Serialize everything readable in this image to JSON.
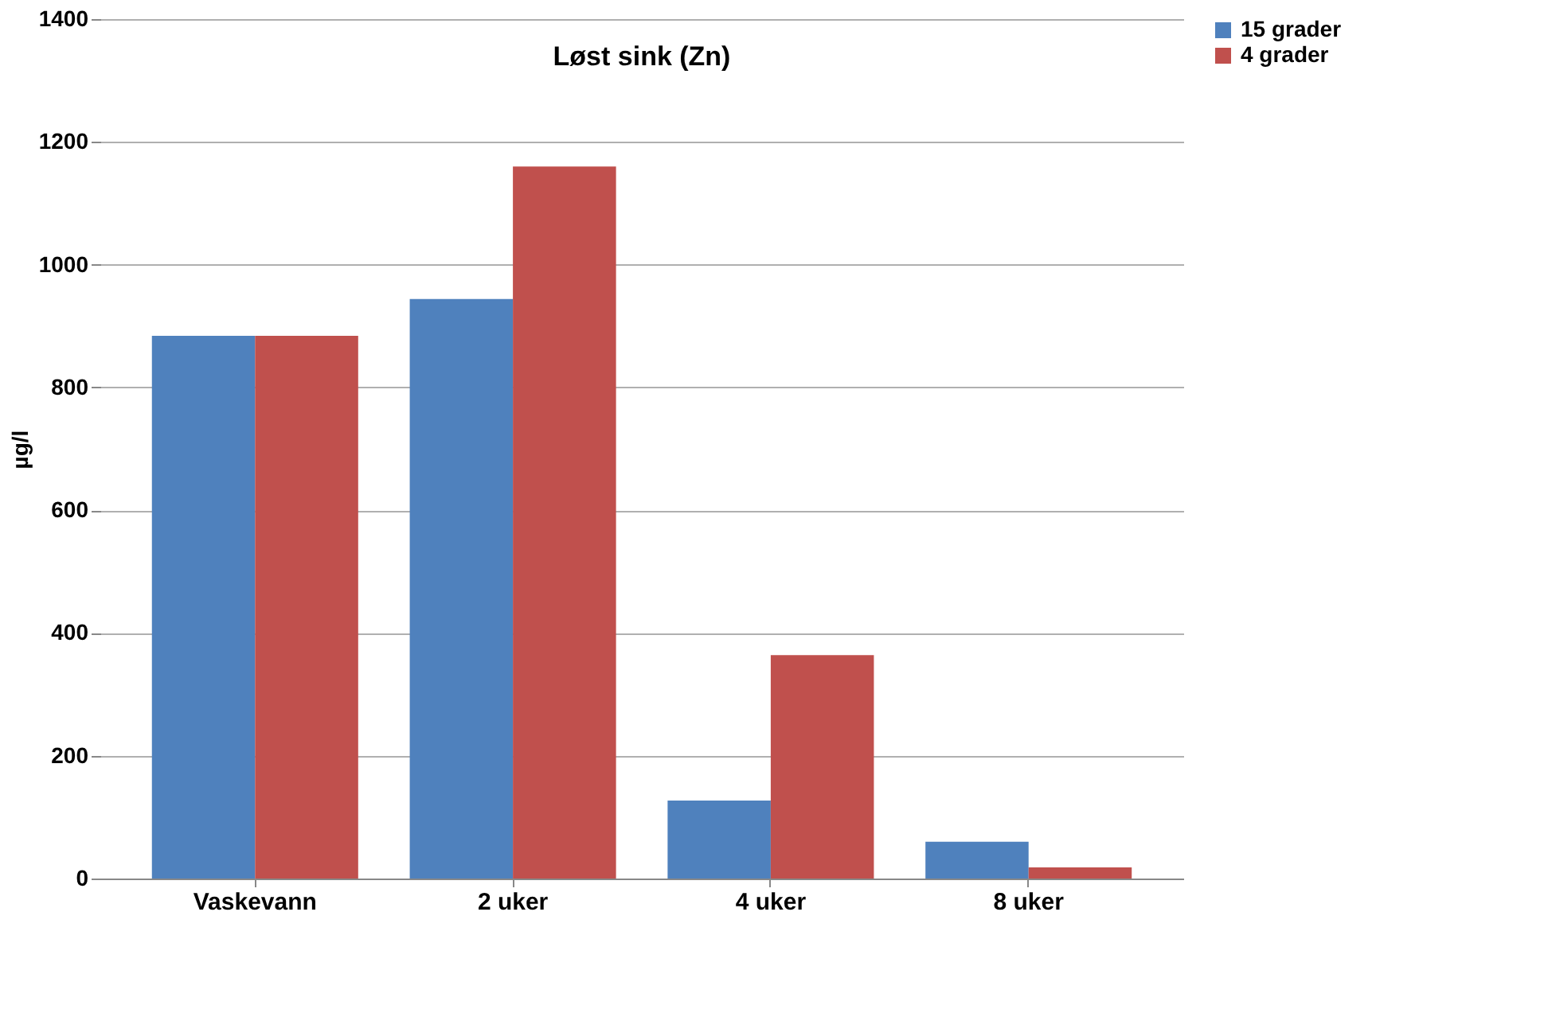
{
  "chart_data": {
    "type": "bar",
    "title": "Løst sink (Zn)",
    "ylabel": "µg/l",
    "categories": [
      "Vaskevann",
      "2 uker",
      "4 uker",
      "8 uker"
    ],
    "series": [
      {
        "name": "15 grader",
        "color": "#4f81bd",
        "values": [
          884,
          944,
          127,
          60
        ]
      },
      {
        "name": "4 grader",
        "color": "#c0504d",
        "values": [
          884,
          1160,
          364,
          18
        ]
      }
    ],
    "ylim": [
      0,
      1400
    ],
    "yticks": [
      0,
      200,
      400,
      600,
      800,
      1000,
      1200,
      1400
    ],
    "grid": "y",
    "legend": "right"
  }
}
